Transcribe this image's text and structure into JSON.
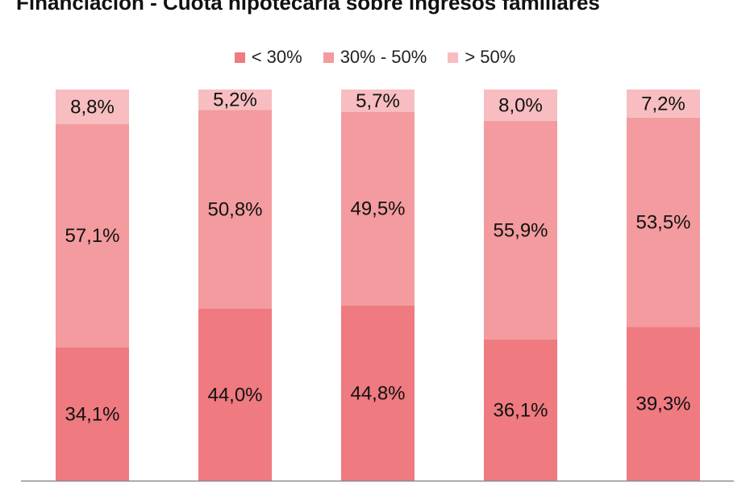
{
  "chart_data": {
    "type": "bar",
    "stacked": true,
    "title": "Financiación - Cuota hipotecaria sobre ingresos familiares",
    "categories": [
      "",
      "",
      "",
      "",
      ""
    ],
    "series": [
      {
        "name": "< 30%",
        "color": "#ef7a80",
        "values": [
          34.1,
          44.0,
          44.8,
          36.1,
          39.3
        ],
        "labels": [
          "34,1%",
          "44,0%",
          "44,8%",
          "36,1%",
          "39,3%"
        ]
      },
      {
        "name": "30% - 50%",
        "color": "#f39b9e",
        "values": [
          57.1,
          50.8,
          49.5,
          55.9,
          53.5
        ],
        "labels": [
          "57,1%",
          "50,8%",
          "49,5%",
          "55,9%",
          "53,5%"
        ]
      },
      {
        "name": "> 50%",
        "color": "#f7bdc0",
        "values": [
          8.8,
          5.2,
          5.7,
          8.0,
          7.2
        ],
        "labels": [
          "8,8%",
          "5,2%",
          "5,7%",
          "8,0%",
          "7,2%"
        ]
      }
    ],
    "ylim": [
      0,
      100
    ],
    "grid": false,
    "legend": "top-center"
  }
}
